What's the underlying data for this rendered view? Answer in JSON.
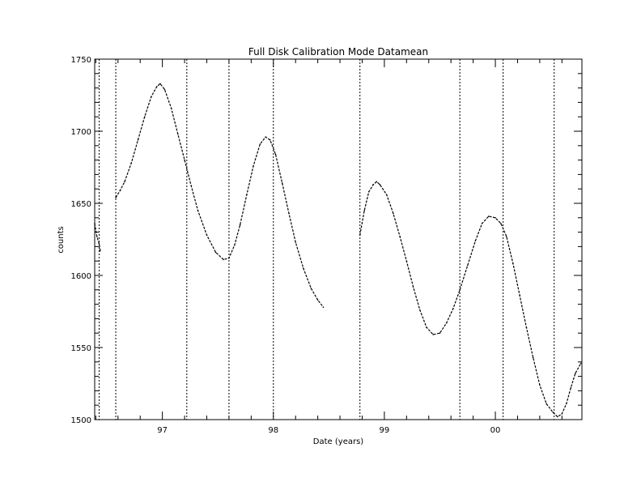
{
  "chart_data": {
    "type": "scatter",
    "title": "Full Disk Calibration Mode Datamean",
    "xlabel": "Date (years)",
    "ylabel": "counts",
    "xlim": [
      1996.39,
      2000.78
    ],
    "ylim": [
      1500,
      1750
    ],
    "x_ticks": [
      {
        "value": 1997,
        "label": "97"
      },
      {
        "value": 1998,
        "label": "98"
      },
      {
        "value": 1999,
        "label": "99"
      },
      {
        "value": 2000,
        "label": "00"
      }
    ],
    "y_ticks": [
      {
        "value": 1500,
        "label": "1500"
      },
      {
        "value": 1550,
        "label": "1550"
      },
      {
        "value": 1600,
        "label": "1600"
      },
      {
        "value": 1650,
        "label": "1650"
      },
      {
        "value": 1700,
        "label": "1700"
      },
      {
        "value": 1750,
        "label": "1750"
      }
    ],
    "grid": false,
    "vertical_markers": [
      1996.43,
      1996.58,
      1997.22,
      1997.6,
      1998.0,
      1998.78,
      1999.68,
      2000.07,
      2000.53
    ],
    "segments": [
      {
        "points": [
          [
            1996.39,
            1636
          ],
          [
            1996.41,
            1627
          ],
          [
            1996.43,
            1622
          ],
          [
            1996.44,
            1617
          ]
        ]
      },
      {
        "points": [
          [
            1996.58,
            1654
          ],
          [
            1996.62,
            1659
          ],
          [
            1996.66,
            1665
          ],
          [
            1996.72,
            1678
          ],
          [
            1996.78,
            1694
          ],
          [
            1996.84,
            1710
          ],
          [
            1996.9,
            1724
          ],
          [
            1996.95,
            1731
          ],
          [
            1996.98,
            1733
          ],
          [
            1997.02,
            1729
          ],
          [
            1997.08,
            1716
          ],
          [
            1997.14,
            1698
          ],
          [
            1997.2,
            1680
          ],
          [
            1997.26,
            1662
          ],
          [
            1997.32,
            1645
          ],
          [
            1997.4,
            1628
          ],
          [
            1997.48,
            1616
          ],
          [
            1997.55,
            1611
          ],
          [
            1997.6,
            1612
          ],
          [
            1997.65,
            1621
          ],
          [
            1997.7,
            1635
          ],
          [
            1997.76,
            1656
          ],
          [
            1997.82,
            1676
          ],
          [
            1997.88,
            1691
          ],
          [
            1997.93,
            1696
          ],
          [
            1997.97,
            1694
          ],
          [
            1998.02,
            1684
          ],
          [
            1998.08,
            1664
          ],
          [
            1998.14,
            1643
          ],
          [
            1998.2,
            1623
          ],
          [
            1998.27,
            1605
          ],
          [
            1998.34,
            1591
          ],
          [
            1998.4,
            1583
          ],
          [
            1998.45,
            1578
          ]
        ]
      },
      {
        "points": [
          [
            1998.78,
            1628
          ],
          [
            1998.82,
            1645
          ],
          [
            1998.86,
            1658
          ],
          [
            1998.9,
            1663
          ],
          [
            1998.93,
            1665
          ],
          [
            1998.96,
            1663
          ],
          [
            1999.02,
            1656
          ],
          [
            1999.08,
            1643
          ],
          [
            1999.14,
            1627
          ],
          [
            1999.2,
            1610
          ],
          [
            1999.26,
            1592
          ],
          [
            1999.32,
            1576
          ],
          [
            1999.38,
            1564
          ],
          [
            1999.44,
            1559
          ],
          [
            1999.5,
            1560
          ],
          [
            1999.56,
            1567
          ],
          [
            1999.62,
            1577
          ],
          [
            1999.68,
            1590
          ],
          [
            1999.75,
            1607
          ],
          [
            1999.82,
            1624
          ],
          [
            1999.88,
            1636
          ],
          [
            1999.94,
            1641
          ],
          [
            2000.0,
            1640
          ],
          [
            2000.05,
            1636
          ],
          [
            2000.1,
            1627
          ],
          [
            2000.16,
            1608
          ],
          [
            2000.22,
            1586
          ],
          [
            2000.28,
            1564
          ],
          [
            2000.34,
            1543
          ],
          [
            2000.4,
            1524
          ],
          [
            2000.46,
            1511
          ],
          [
            2000.52,
            1505
          ],
          [
            2000.56,
            1502
          ],
          [
            2000.6,
            1504
          ],
          [
            2000.64,
            1511
          ],
          [
            2000.68,
            1522
          ],
          [
            2000.72,
            1532
          ],
          [
            2000.77,
            1539
          ]
        ]
      }
    ]
  }
}
